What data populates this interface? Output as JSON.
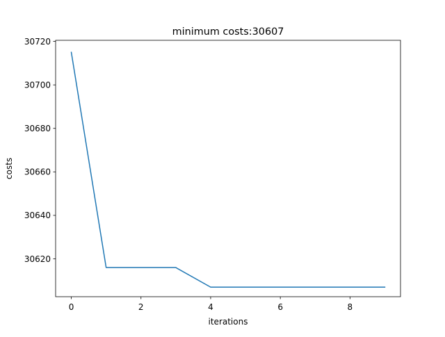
{
  "chart_data": {
    "type": "line",
    "title": "minimum costs:30607",
    "xlabel": "iterations",
    "ylabel": "costs",
    "xlim": [
      -0.45,
      9.45
    ],
    "ylim": [
      30602.6,
      30720.5
    ],
    "xticks": [
      0,
      2,
      4,
      6,
      8
    ],
    "yticks": [
      30620,
      30640,
      30660,
      30680,
      30700,
      30720
    ],
    "grid": false,
    "legend": false,
    "series": [
      {
        "color": "#1f77b4",
        "x": [
          0,
          1,
          2,
          3,
          4,
          5,
          6,
          7,
          8,
          9
        ],
        "y": [
          30715,
          30616,
          30616,
          30616,
          30607,
          30607,
          30607,
          30607,
          30607,
          30607
        ]
      }
    ]
  }
}
